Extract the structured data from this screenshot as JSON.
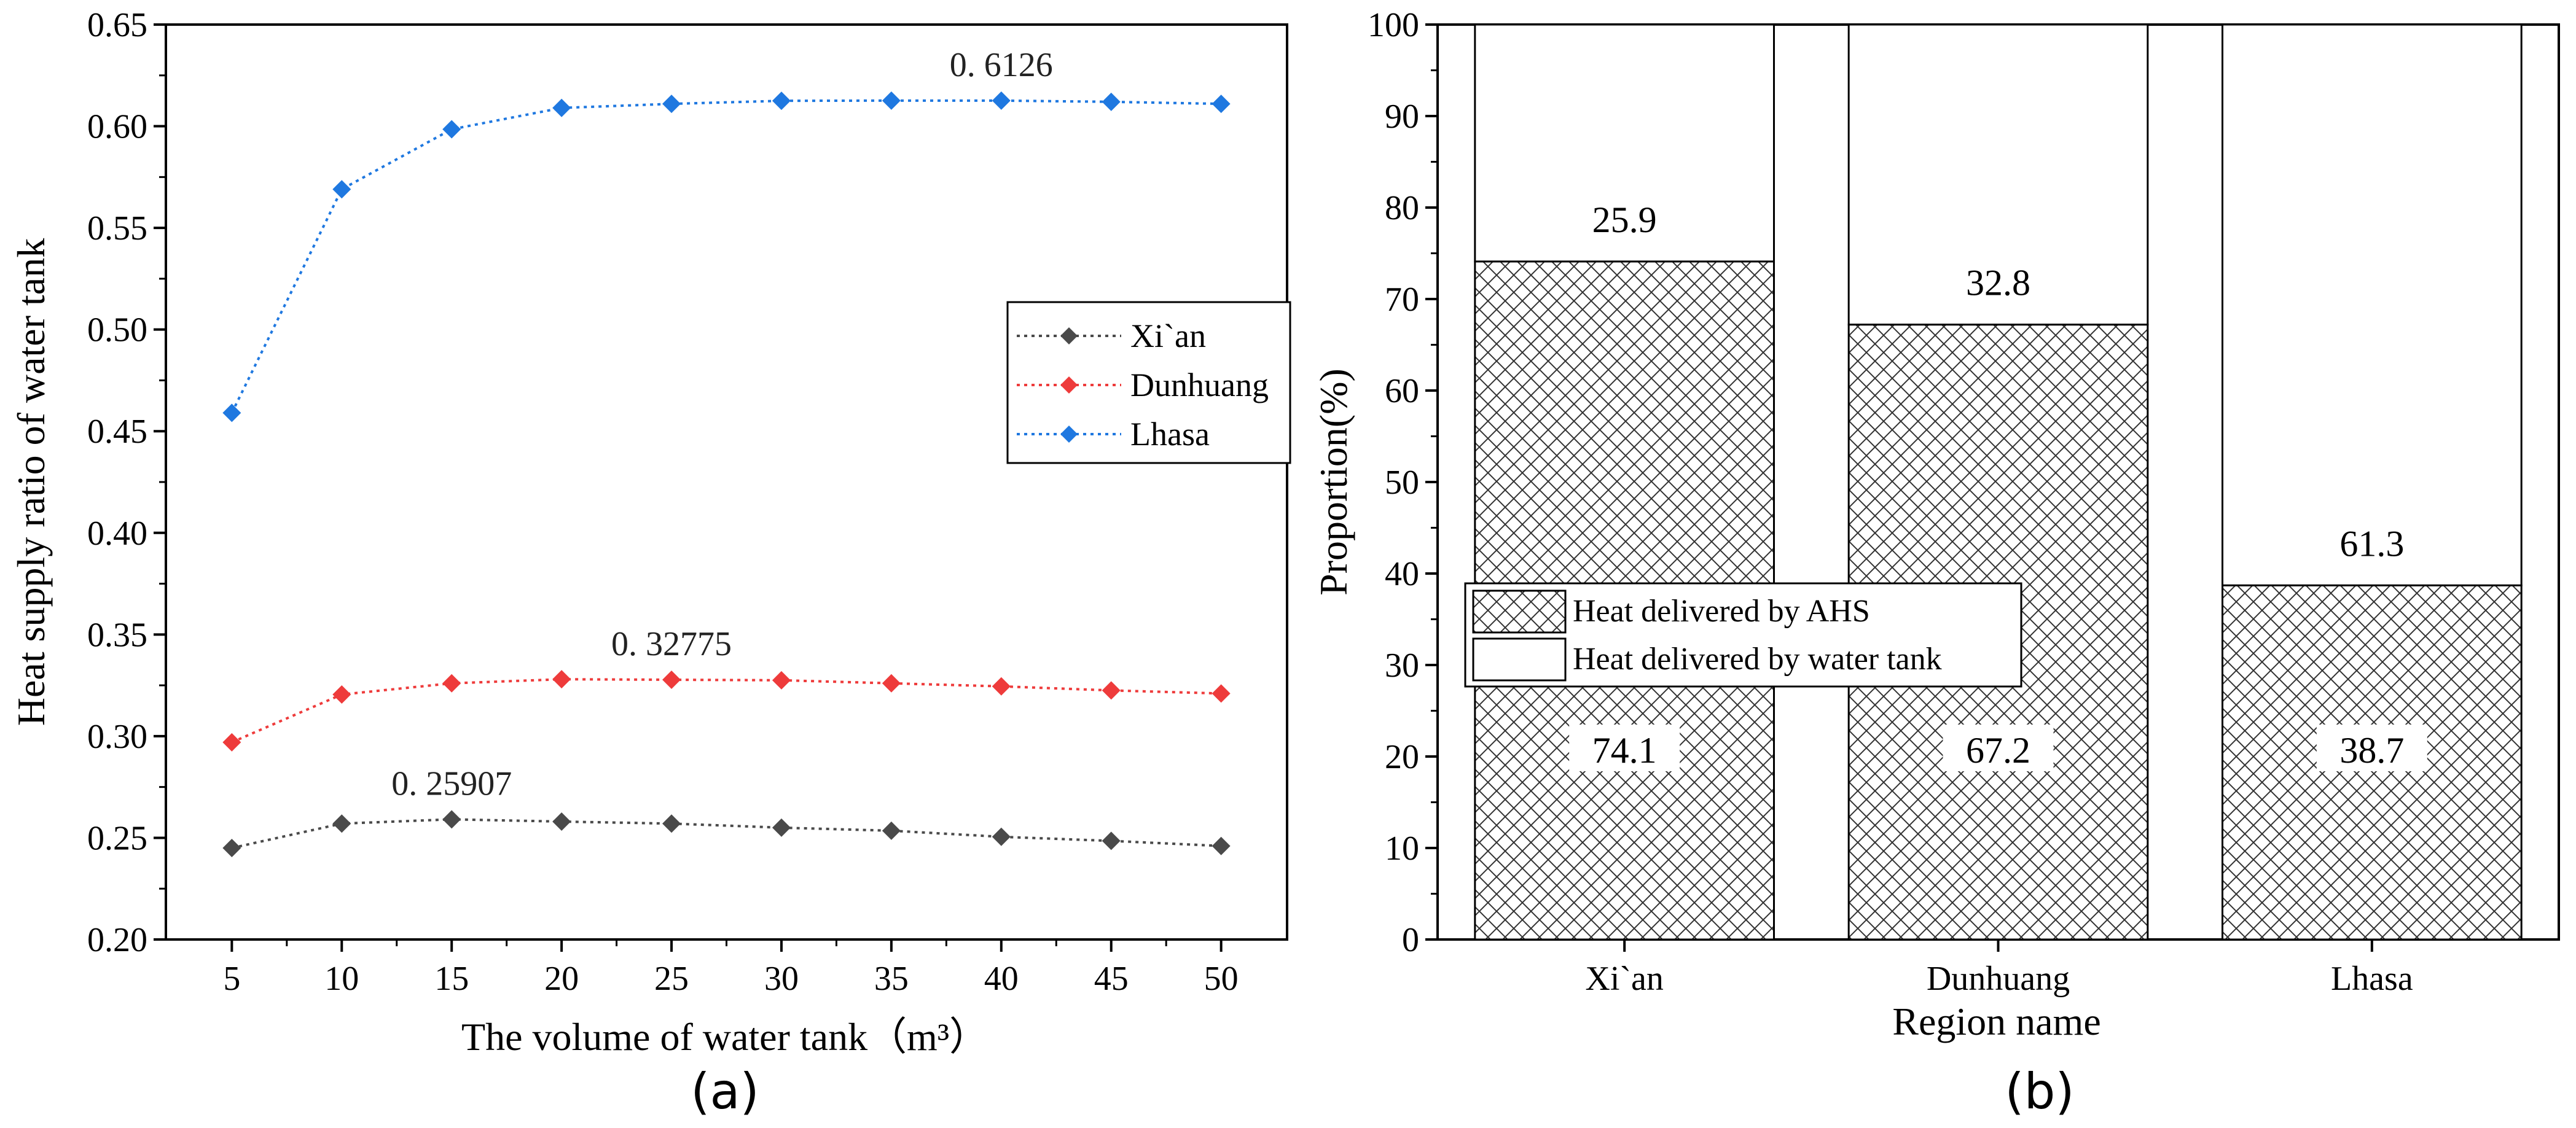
{
  "chart_data": [
    {
      "type": "line",
      "panel_label": "(a)",
      "xlabel": "The volume of water tank（m³）",
      "ylabel": "Heat supply ratio of water tank",
      "x": [
        5,
        10,
        15,
        20,
        25,
        30,
        35,
        40,
        45,
        50
      ],
      "x_tick_labels": [
        "5",
        "10",
        "15",
        "20",
        "25",
        "30",
        "35",
        "40",
        "45",
        "50"
      ],
      "xlim": [
        2,
        53
      ],
      "ylim": [
        0.2,
        0.65
      ],
      "y_ticks": [
        0.2,
        0.25,
        0.3,
        0.35,
        0.4,
        0.45,
        0.5,
        0.55,
        0.6,
        0.65
      ],
      "y_tick_labels": [
        "0.20",
        "0.25",
        "0.30",
        "0.35",
        "0.40",
        "0.45",
        "0.50",
        "0.55",
        "0.60",
        "0.65"
      ],
      "grid": false,
      "legend_position": "right-middle",
      "series": [
        {
          "name": "Xi`an",
          "color": "#4a4a4a",
          "values": [
            0.245,
            0.257,
            0.2591,
            0.258,
            0.257,
            0.255,
            0.2535,
            0.2505,
            0.2485,
            0.246
          ]
        },
        {
          "name": "Dunhuang",
          "color": "#ee3b3b",
          "values": [
            0.297,
            0.3205,
            0.326,
            0.328,
            0.32775,
            0.3275,
            0.326,
            0.3245,
            0.3225,
            0.321
          ]
        },
        {
          "name": "Lhasa",
          "color": "#1f78e0",
          "values": [
            0.459,
            0.569,
            0.5985,
            0.609,
            0.611,
            0.6125,
            0.6126,
            0.6126,
            0.612,
            0.611
          ]
        }
      ],
      "annotations": [
        {
          "text": "0. 25907",
          "series": "Xi`an",
          "x": 15,
          "y": 0.25907
        },
        {
          "text": "0. 32775",
          "series": "Dunhuang",
          "x": 25,
          "y": 0.32775
        },
        {
          "text": "0. 6126",
          "series": "Lhasa",
          "x": 40,
          "y": 0.6126
        }
      ]
    },
    {
      "type": "bar",
      "stacked": true,
      "panel_label": "(b)",
      "xlabel": "Region name",
      "ylabel": "Proportion(%)",
      "categories": [
        "Xi`an",
        "Dunhuang",
        "Lhasa"
      ],
      "ylim": [
        0,
        100
      ],
      "y_ticks": [
        0,
        10,
        20,
        30,
        40,
        50,
        60,
        70,
        80,
        90,
        100
      ],
      "y_tick_labels": [
        "0",
        "10",
        "20",
        "30",
        "40",
        "50",
        "60",
        "70",
        "80",
        "90",
        "100"
      ],
      "grid": false,
      "legend_position": "left-middle",
      "series": [
        {
          "name": "Heat delivered by AHS",
          "pattern": "crosshatch",
          "values": [
            74.1,
            67.2,
            38.7
          ],
          "labels": [
            "74.1",
            "67.2",
            "38.7"
          ]
        },
        {
          "name": "Heat delivered by water tank",
          "pattern": "none",
          "values": [
            25.9,
            32.8,
            61.3
          ],
          "labels": [
            "25.9",
            "32.8",
            "61.3"
          ]
        }
      ]
    }
  ]
}
